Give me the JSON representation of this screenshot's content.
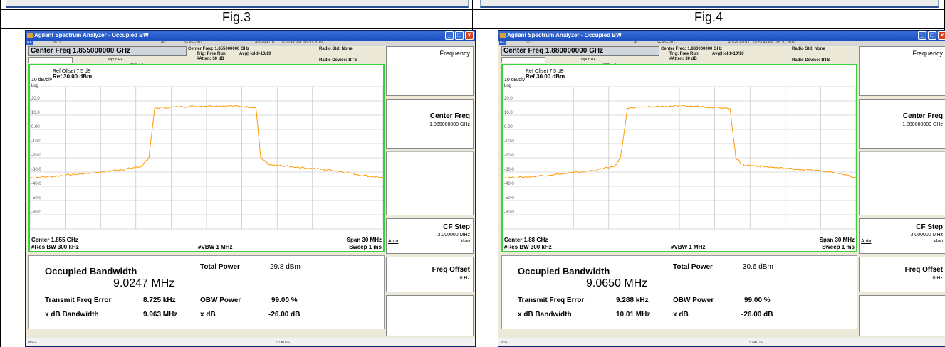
{
  "captions": {
    "left": "Fig.3",
    "right": "Fig.4"
  },
  "figures": [
    {
      "window_title": "Agilent Spectrum Analyzer - Occupied BW",
      "status_row": {
        "tag": "RF",
        "impedance": "50 Ω",
        "coupling": "AC",
        "sense": "SENSE:INT",
        "align": "ALIGN AUTO",
        "timestamp": "06:55:49 PM Jan 30, 2019"
      },
      "center_freq_field": "Center Freq  1.855000000 GHz",
      "input_label": "Input: RF",
      "ifgain_label": "#IFGain:Low",
      "center_freq_info": "Center Freq: 1.855000000 GHz",
      "trig_info": "Trig: Free Run",
      "avg_info": "Avg|Hold>10/10",
      "atten_info": "#Atten: 30 dB",
      "radio_std": "Radio Std: None",
      "radio_device": "Radio Device: BTS",
      "ref_offset": "Ref Offset 7.5 dB",
      "scale": "10 dB/div",
      "ref_level": "Ref 30.00 dBm",
      "log_label": "Log",
      "y_ticks": [
        "20.0",
        "10.0",
        "0.00",
        "-10.0",
        "-20.0",
        "-30.0",
        "-40.0",
        "-50.0",
        "-60.0"
      ],
      "center_label": "Center  1.855 GHz",
      "res_bw": "#Res BW  300 kHz",
      "vbw": "#VBW  1 MHz",
      "span": "Span 30 MHz",
      "sweep": "Sweep  1 ms",
      "occupied_bw_label": "Occupied Bandwidth",
      "occupied_bw_value": "9.0247 MHz",
      "total_power_label": "Total Power",
      "total_power_value": "29.8 dBm",
      "tx_freq_err_label": "Transmit Freq Error",
      "tx_freq_err_value": "8.725 kHz",
      "obw_power_label": "OBW Power",
      "obw_power_value": "99.00 %",
      "xdb_bw_label": "x dB Bandwidth",
      "xdb_bw_value": "9.963 MHz",
      "xdb_label": "x dB",
      "xdb_value": "-26.00 dB",
      "softkeys": {
        "menu_title": "Frequency",
        "center_freq_title": "Center Freq",
        "center_freq_value": "1.855000000 GHz",
        "cf_step_title": "CF Step",
        "cf_step_value": "3.000000 MHz",
        "cf_step_auto": "Auto",
        "cf_step_man": "Man",
        "freq_offset_title": "Freq Offset",
        "freq_offset_value": "0 Hz"
      },
      "bottom_bar": {
        "msg": "MSG",
        "status": "STATUS"
      },
      "trace": {
        "x_mhz": [
          -15,
          -13,
          -11,
          -9,
          -7,
          -5.5,
          -4.9,
          -4.4,
          -2,
          0,
          2,
          4.2,
          4.6,
          5.3,
          7,
          9,
          11,
          13,
          15
        ],
        "y_dbm": [
          -34,
          -33,
          -31.5,
          -30,
          -28,
          -26,
          -20,
          15,
          16,
          16.5,
          16.5,
          15.5,
          -20,
          -25,
          -26,
          -27.5,
          -29,
          -32,
          -34
        ]
      }
    },
    {
      "window_title": "Agilent Spectrum Analyzer - Occupied BW",
      "status_row": {
        "tag": "RF",
        "impedance": "50 Ω",
        "coupling": "AC",
        "sense": "SENSE:INT",
        "align": "ALIGN AUTO",
        "timestamp": "06:51:43 PM Jan 30, 2019"
      },
      "center_freq_field": "Center Freq  1.880000000 GHz",
      "input_label": "Input: RF",
      "ifgain_label": "#IFGain:Low",
      "center_freq_info": "Center Freq: 1.880000000 GHz",
      "trig_info": "Trig: Free Run",
      "avg_info": "Avg|Hold>10/10",
      "atten_info": "#Atten: 30 dB",
      "radio_std": "Radio Std: None",
      "radio_device": "Radio Device: BTS",
      "ref_offset": "Ref Offset 7.5 dB",
      "scale": "10 dB/div",
      "ref_level": "Ref 30.00 dBm",
      "log_label": "Log",
      "y_ticks": [
        "20.0",
        "10.0",
        "0.00",
        "-10.0",
        "-20.0",
        "-30.0",
        "-40.0",
        "-50.0",
        "-60.0"
      ],
      "center_label": "Center  1.88 GHz",
      "res_bw": "#Res BW  300 kHz",
      "vbw": "#VBW  1 MHz",
      "span": "Span 30 MHz",
      "sweep": "Sweep  1 ms",
      "occupied_bw_label": "Occupied Bandwidth",
      "occupied_bw_value": "9.0650 MHz",
      "total_power_label": "Total Power",
      "total_power_value": "30.6 dBm",
      "tx_freq_err_label": "Transmit Freq Error",
      "tx_freq_err_value": "9.288 kHz",
      "obw_power_label": "OBW Power",
      "obw_power_value": "99.00 %",
      "xdb_bw_label": "x dB Bandwidth",
      "xdb_bw_value": "10.01 MHz",
      "xdb_label": "x dB",
      "xdb_value": "-26.00 dB",
      "softkeys": {
        "menu_title": "Frequency",
        "center_freq_title": "Center Freq",
        "center_freq_value": "1.880000000 GHz",
        "cf_step_title": "CF Step",
        "cf_step_value": "3.000000 MHz",
        "cf_step_auto": "Auto",
        "cf_step_man": "Man",
        "freq_offset_title": "Freq Offset",
        "freq_offset_value": "0 Hz"
      },
      "bottom_bar": {
        "msg": "MSG",
        "status": "STATUS"
      },
      "trace": {
        "x_mhz": [
          -15,
          -13,
          -11,
          -9,
          -7,
          -5.5,
          -5,
          -4.4,
          -2,
          0,
          2,
          4.3,
          4.8,
          5.4,
          7,
          9,
          11,
          13,
          15
        ],
        "y_dbm": [
          -34,
          -33.5,
          -32,
          -30.5,
          -28.5,
          -26,
          -20,
          15,
          16,
          16.5,
          16,
          15,
          -20,
          -25,
          -26,
          -27.5,
          -28.5,
          -30,
          -34
        ]
      }
    }
  ],
  "colors": {
    "trace": "#ff9900",
    "plot_border": "#3cd03c",
    "grid": "#b8b8b8"
  }
}
